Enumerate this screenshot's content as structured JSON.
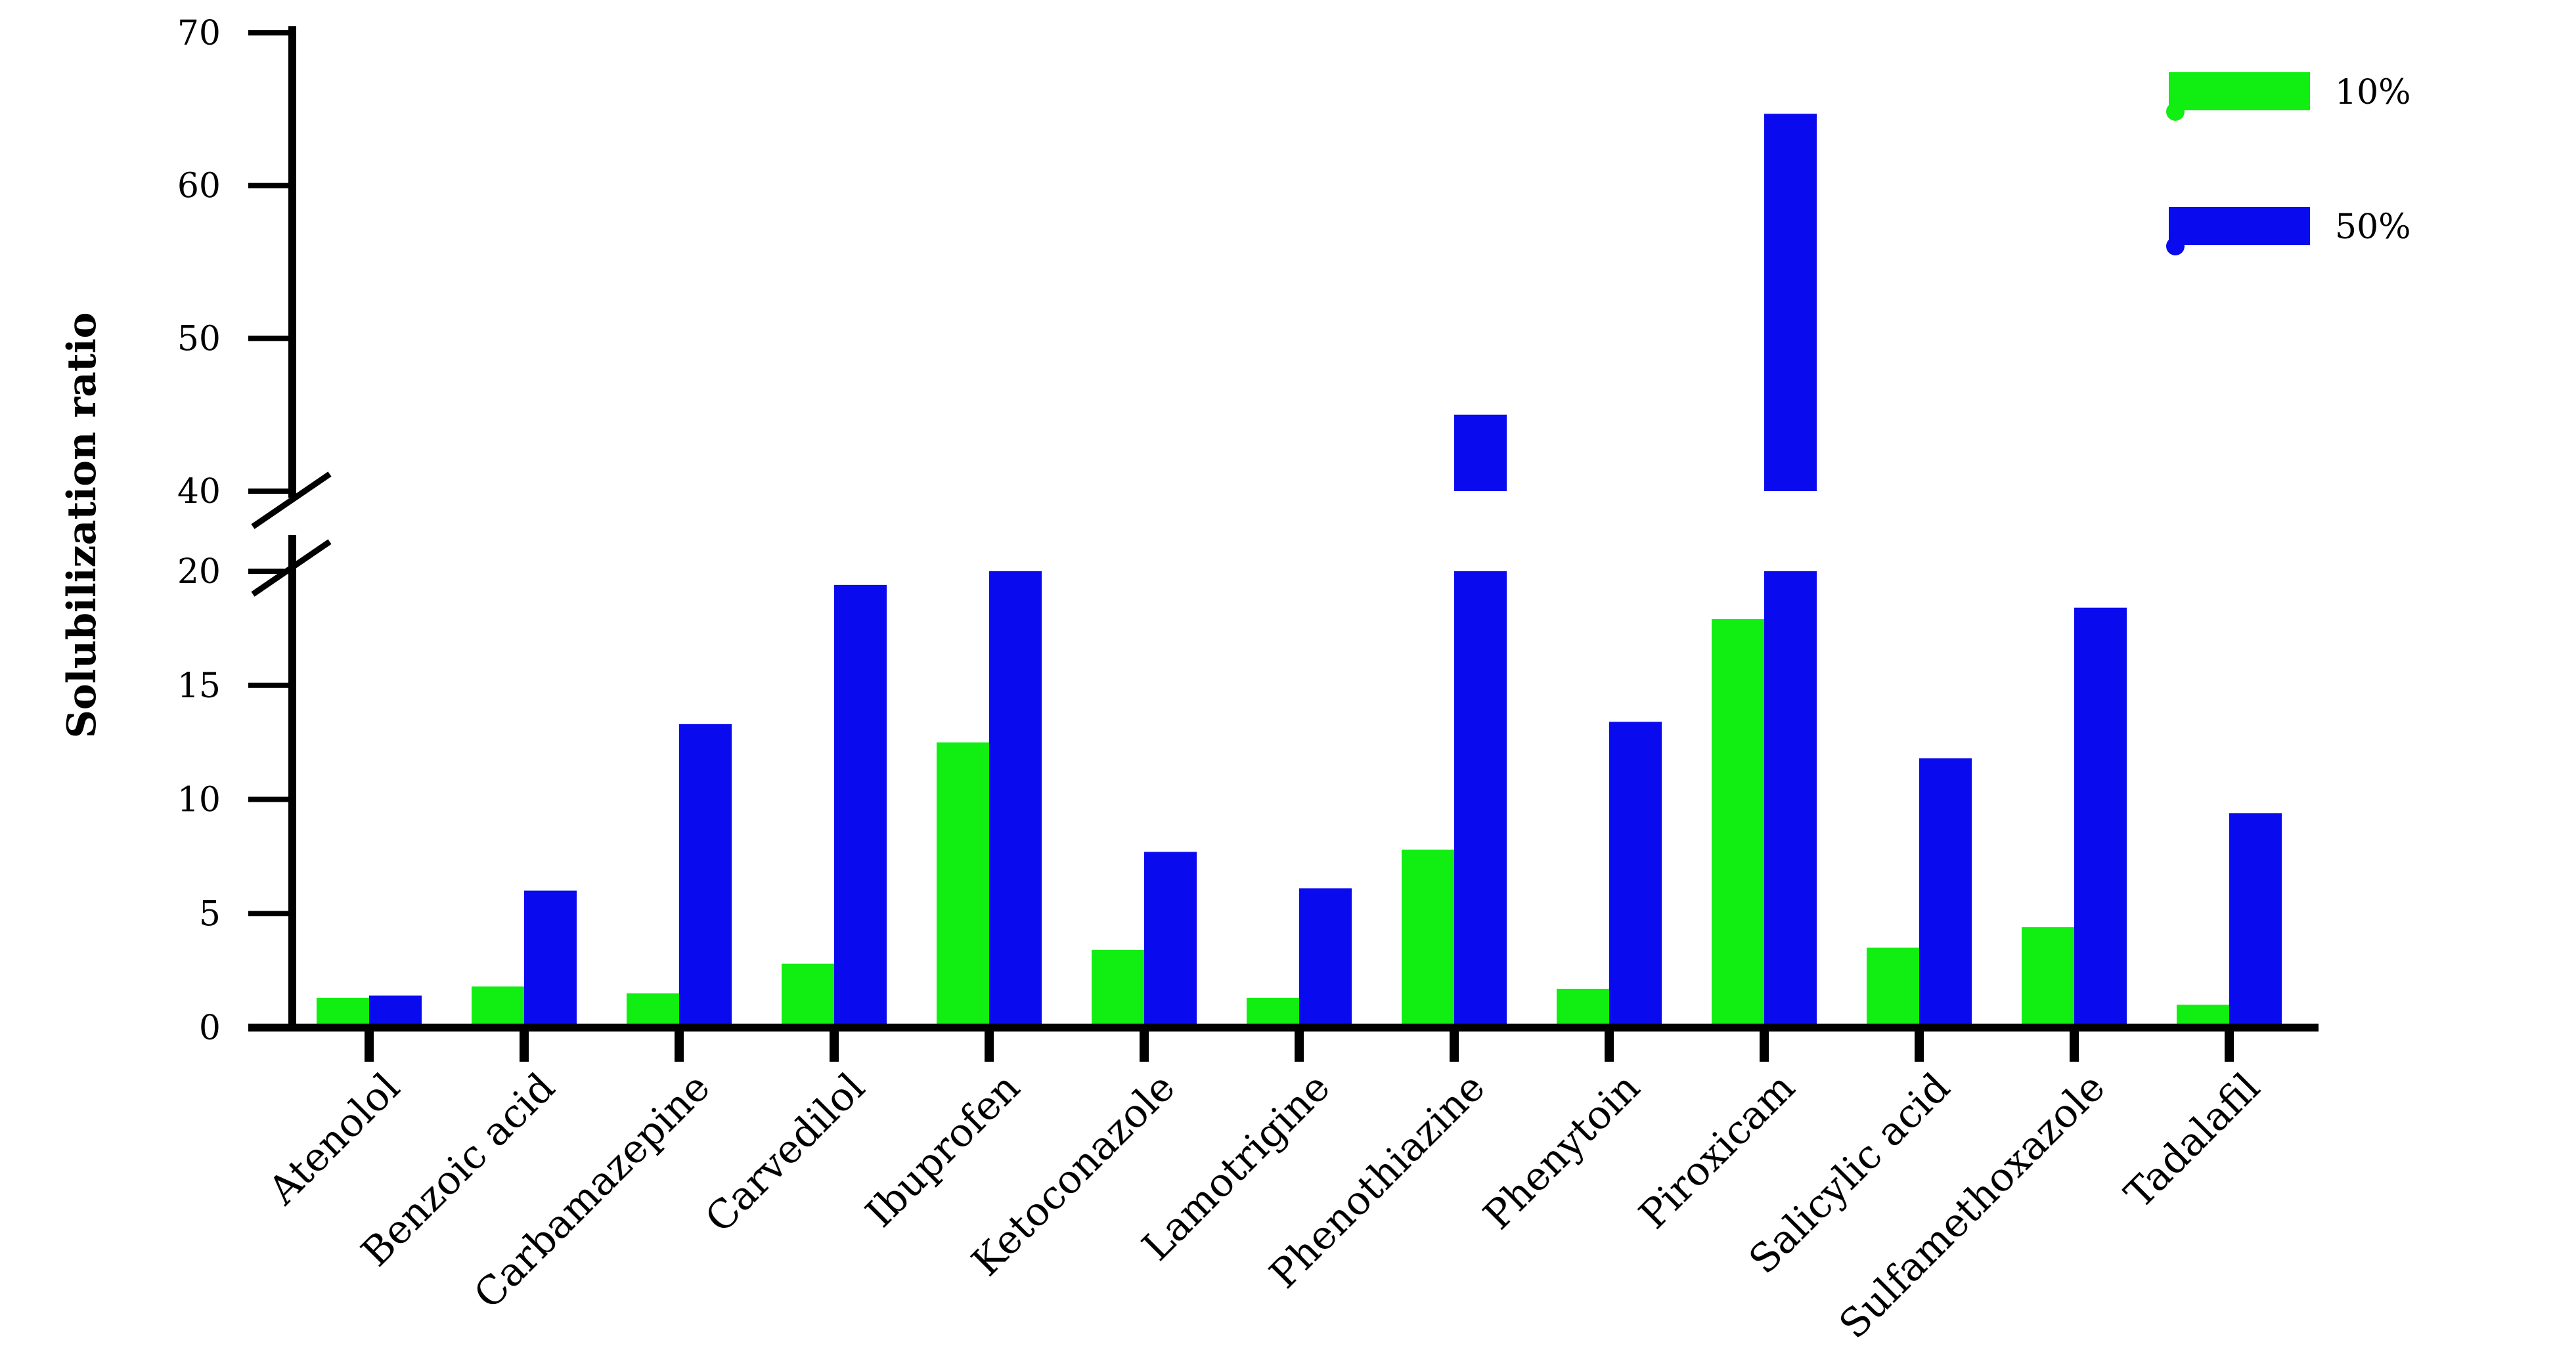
{
  "chart_data": {
    "type": "bar",
    "ylabel": "Solubilization ratio",
    "categories": [
      "Atenolol",
      "Benzoic acid",
      "Carbamazepine",
      "Carvedilol",
      "Ibuprofen",
      "Ketoconazole",
      "Lamotrigine",
      "Phenothiazine",
      "Phenytoin",
      "Piroxicam",
      "Salicylic acid",
      "Sulfamethoxazole",
      "Tadalafil"
    ],
    "series": [
      {
        "name": "10%",
        "color": "#11ee11",
        "values": [
          1.3,
          1.8,
          1.5,
          2.8,
          12.5,
          3.4,
          1.3,
          7.8,
          1.7,
          17.9,
          3.5,
          4.4,
          1.0
        ]
      },
      {
        "name": "50%",
        "color": "#0a0aee",
        "values": [
          1.4,
          6.0,
          13.3,
          19.4,
          24,
          7.7,
          6.1,
          45,
          13.4,
          64.7,
          11.8,
          18.4,
          9.4
        ]
      }
    ],
    "y_axis": {
      "broken": true,
      "lower_range": [
        0,
        20
      ],
      "upper_range": [
        40,
        70
      ],
      "lower_ticks": [
        0,
        5,
        10,
        15,
        20
      ],
      "upper_ticks": [
        40,
        50,
        60,
        70
      ]
    },
    "legend_position": "top-right",
    "grid": false
  }
}
